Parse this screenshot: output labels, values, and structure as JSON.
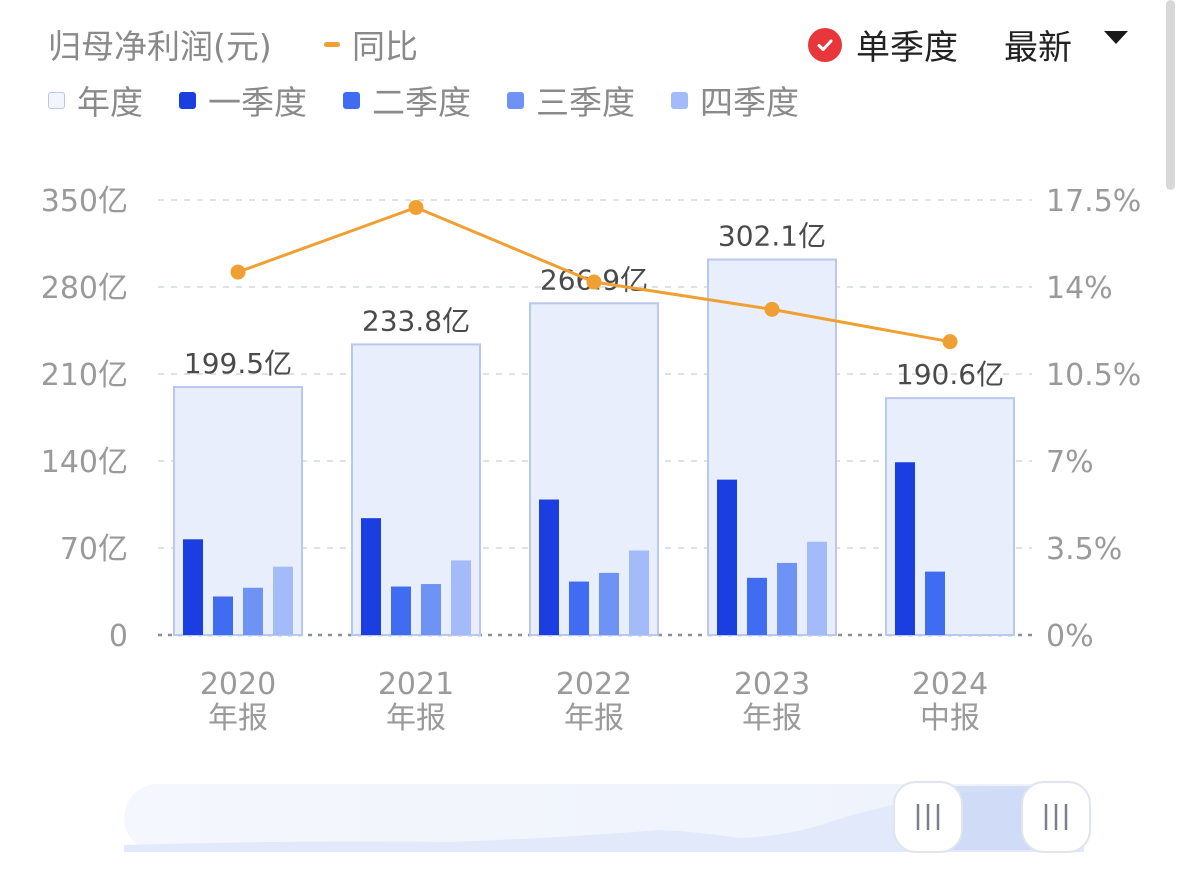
{
  "header": {
    "title": "归母净利润(元)",
    "yoy_label": "同比",
    "season_toggle_label": "单季度",
    "latest_label": "最新"
  },
  "legend": [
    {
      "label": "年度",
      "color": "#e8eefc",
      "border": "#b9c8ee"
    },
    {
      "label": "一季度",
      "color": "#1a3ee0"
    },
    {
      "label": "二季度",
      "color": "#3f6cf0"
    },
    {
      "label": "三季度",
      "color": "#6f93f5"
    },
    {
      "label": "四季度",
      "color": "#a3bbf8"
    }
  ],
  "chart_data": {
    "type": "bar",
    "categories": [
      "2020|年报",
      "2021|年报",
      "2022|年报",
      "2023|年报",
      "2024|中报"
    ],
    "series": [
      {
        "name": "年度",
        "values": [
          199.5,
          233.8,
          266.9,
          302.1,
          190.6
        ],
        "labels": [
          "199.5亿",
          "233.8亿",
          "266.9亿",
          "302.1亿",
          "190.6亿"
        ]
      },
      {
        "name": "一季度",
        "values": [
          77,
          94,
          109,
          125,
          139
        ]
      },
      {
        "name": "二季度",
        "values": [
          31,
          39,
          43,
          46,
          51
        ]
      },
      {
        "name": "三季度",
        "values": [
          38,
          41,
          50,
          58,
          0
        ]
      },
      {
        "name": "四季度",
        "values": [
          55,
          60,
          68,
          75,
          0
        ]
      },
      {
        "name": "同比",
        "axis": "right",
        "type": "line",
        "values": [
          14.6,
          17.2,
          14.2,
          13.1,
          11.8
        ]
      }
    ],
    "ylim": [
      0,
      350
    ],
    "y_ticks": [
      "0",
      "70亿",
      "140亿",
      "210亿",
      "280亿",
      "350亿"
    ],
    "y2lim": [
      0,
      17.5
    ],
    "y2_ticks": [
      "0%",
      "3.5%",
      "7%",
      "10.5%",
      "14%",
      "17.5%"
    ],
    "grid": true,
    "colors": {
      "line": "#f0a033",
      "annual_fill": "#e8eefc",
      "annual_border": "#b9c8ee"
    }
  }
}
